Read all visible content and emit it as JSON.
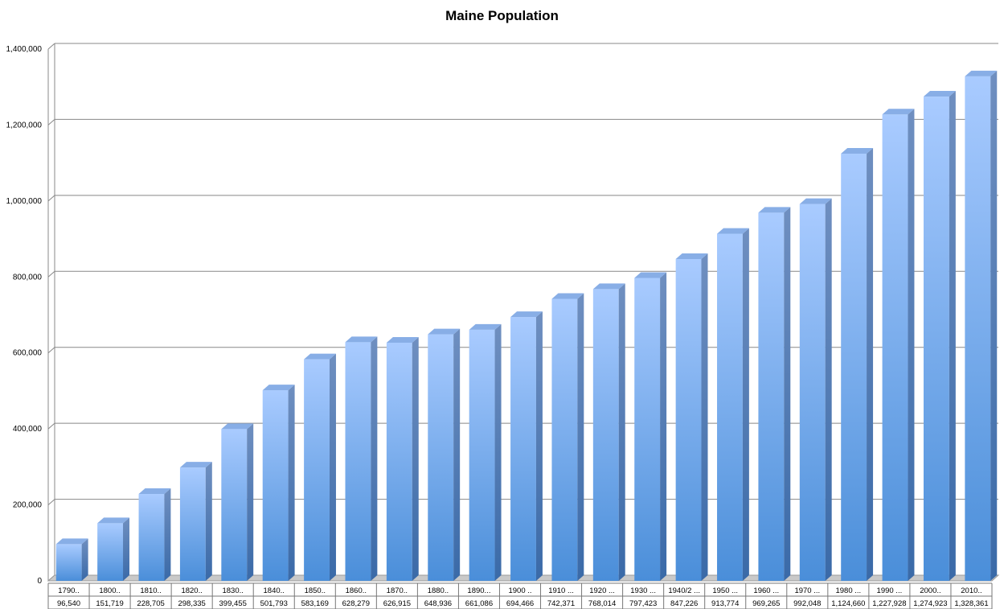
{
  "chart_data": {
    "type": "bar",
    "title": "Maine Population",
    "ylim": [
      0,
      1400000
    ],
    "y_ticks": [
      "0",
      "200,000",
      "400,000",
      "600,000",
      "800,000",
      "1,000,000",
      "1,200,000",
      "1,400,000"
    ],
    "categories": [
      "1790..",
      "1800..",
      "1810..",
      "1820..",
      "1830..",
      "1840..",
      "1850..",
      "1860..",
      "1870..",
      "1880..",
      "1890...",
      "1900 ..",
      "1910 ...",
      "1920 ...",
      "1930 ...",
      "1940/2 ...",
      "1950 ...",
      "1960 ...",
      "1970 ...",
      "1980 ...",
      "1990 ...",
      "2000..",
      "2010.."
    ],
    "values": [
      96540,
      151719,
      228705,
      298335,
      399455,
      501793,
      583169,
      628279,
      626915,
      648936,
      661086,
      694466,
      742371,
      768014,
      797423,
      847226,
      913774,
      969265,
      992048,
      1124660,
      1227928,
      1274923,
      1328361
    ],
    "value_labels": [
      "96,540",
      "151,719",
      "228,705",
      "298,335",
      "399,455",
      "501,793",
      "583,169",
      "628,279",
      "626,915",
      "648,936",
      "661,086",
      "694,466",
      "742,371",
      "768,014",
      "797,423",
      "847,226",
      "913,774",
      "969,265",
      "992,048",
      "1,124,660",
      "1,227,928",
      "1,274,923",
      "1,328,361"
    ],
    "grid": true,
    "legend": "none",
    "bar_color": "#7aabee"
  }
}
